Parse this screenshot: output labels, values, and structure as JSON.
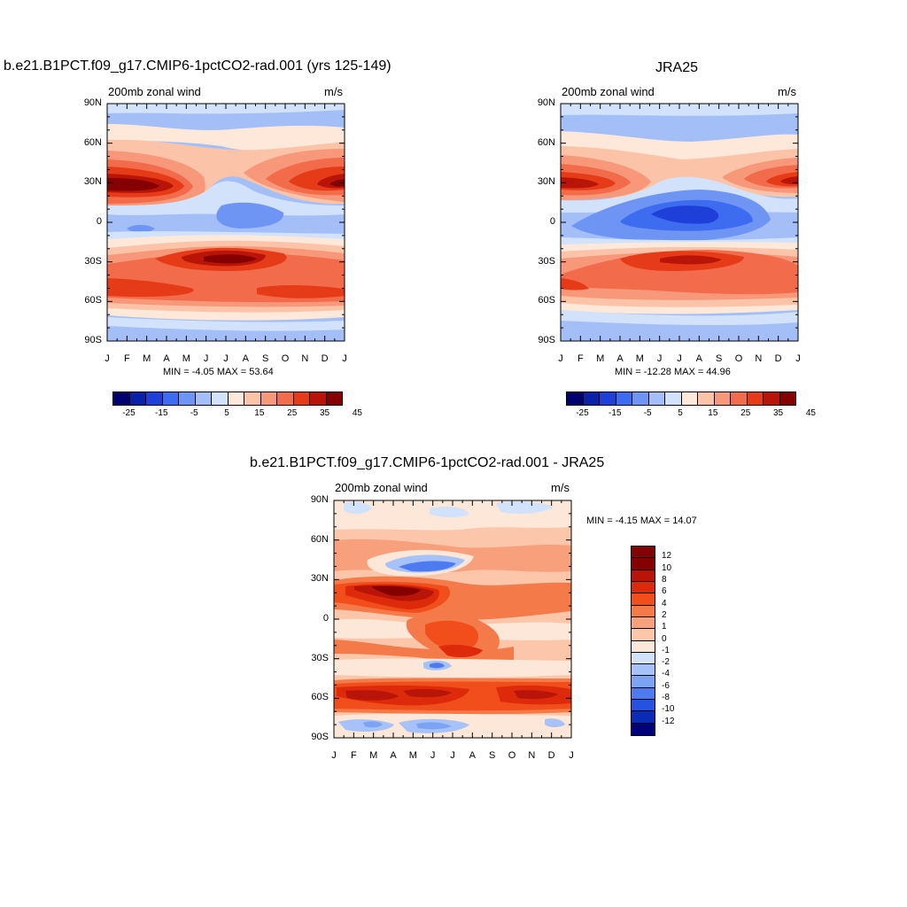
{
  "colors": {
    "levels_main": [
      "#00006e",
      "#0a22a8",
      "#1f40d8",
      "#3d6cf0",
      "#6e95f4",
      "#a4bff7",
      "#d2e2fb",
      "#fde8da",
      "#fbc4a8",
      "#f8987a",
      "#f26b4a",
      "#e53b18",
      "#b81407",
      "#850000"
    ],
    "levels_diff": [
      "#850000",
      "#b81407",
      "#dc2a0a",
      "#f24e1c",
      "#f47a4a",
      "#f8a07c",
      "#fbc6aa",
      "#fde7d8",
      "#d2e2fb",
      "#a7c2f8",
      "#7da3f4",
      "#4d7af0",
      "#2552e0",
      "#0a2ab8",
      "#00007a"
    ]
  },
  "panel1": {
    "title": "b.e21.B1PCT.f09_g17.CMIP6-1pctCO2-rad.001 (yrs 125-149)",
    "left_label": "200mb zonal wind",
    "right_label": "m/s",
    "stats": "MIN =  -4.05 MAX =  53.64",
    "colorbar_labels": [
      "-25",
      "-15",
      "-5",
      "5",
      "15",
      "25",
      "35",
      "45"
    ]
  },
  "panel2": {
    "title": "JRA25",
    "left_label": "200mb zonal wind",
    "right_label": "m/s",
    "stats": "MIN = -12.28 MAX =  44.96",
    "colorbar_labels": [
      "-25",
      "-15",
      "-5",
      "5",
      "15",
      "25",
      "35",
      "45"
    ]
  },
  "panel3": {
    "title": "b.e21.B1PCT.f09_g17.CMIP6-1pctCO2-rad.001 - JRA25",
    "left_label": "200mb zonal wind",
    "right_label": "m/s",
    "stats": "MIN =  -4.15 MAX =  14.07",
    "colorbar_labels": [
      "12",
      "10",
      "8",
      "6",
      "4",
      "2",
      "1",
      "0",
      "-1",
      "-2",
      "-4",
      "-6",
      "-8",
      "-10",
      "-12"
    ]
  },
  "chart_data": [
    {
      "type": "heatmap",
      "title": "b.e21.B1PCT.f09_g17.CMIP6-1pctCO2-rad.001 (yrs 125-149)",
      "xlabel": "",
      "ylabel": "",
      "x": [
        "J",
        "F",
        "M",
        "A",
        "M",
        "J",
        "J",
        "A",
        "S",
        "O",
        "N",
        "D",
        "J"
      ],
      "y": [
        "90N",
        "60N",
        "30N",
        "0",
        "30S",
        "60S",
        "90S"
      ],
      "ylim": [
        -90,
        90
      ],
      "units": "m/s",
      "min": -4.05,
      "max": 53.64,
      "features": [
        {
          "name": "NH subtropical jet, Jan",
          "lat": 28,
          "month": 0.5,
          "value": 50
        },
        {
          "name": "NH subtropical jet, Dec",
          "lat": 28,
          "month": 11.5,
          "value": 45
        },
        {
          "name": "SH jet core, Jul",
          "lat": -27,
          "month": 6.5,
          "value": 50
        },
        {
          "name": "SH midlatitude band",
          "lat": -52,
          "month": 6,
          "value": 35
        },
        {
          "name": "Tropical easterlies, Jul",
          "lat": 8,
          "month": 6.5,
          "value": -5
        }
      ]
    },
    {
      "type": "heatmap",
      "title": "JRA25",
      "xlabel": "",
      "ylabel": "",
      "x": [
        "J",
        "F",
        "M",
        "A",
        "M",
        "J",
        "J",
        "A",
        "S",
        "O",
        "N",
        "D",
        "J"
      ],
      "y": [
        "90N",
        "60N",
        "30N",
        "0",
        "30S",
        "60S",
        "90S"
      ],
      "ylim": [
        -90,
        90
      ],
      "units": "m/s",
      "min": -12.28,
      "max": 44.96,
      "features": [
        {
          "name": "NH subtropical jet, Jan",
          "lat": 28,
          "month": 0.5,
          "value": 40
        },
        {
          "name": "NH subtropical jet, Dec",
          "lat": 30,
          "month": 11.5,
          "value": 40
        },
        {
          "name": "SH jet core, Jul",
          "lat": -28,
          "month": 7,
          "value": 40
        },
        {
          "name": "SH midlatitude band",
          "lat": -45,
          "month": 6,
          "value": 30
        },
        {
          "name": "Tropical easterlies, Jul",
          "lat": 5,
          "month": 7,
          "value": -12
        }
      ]
    },
    {
      "type": "heatmap",
      "title": "b.e21.B1PCT.f09_g17.CMIP6-1pctCO2-rad.001 - JRA25",
      "xlabel": "",
      "ylabel": "",
      "x": [
        "J",
        "F",
        "M",
        "A",
        "M",
        "J",
        "J",
        "A",
        "S",
        "O",
        "N",
        "D",
        "J"
      ],
      "y": [
        "90N",
        "60N",
        "30N",
        "0",
        "30S",
        "60S",
        "90S"
      ],
      "ylim": [
        -90,
        90
      ],
      "units": "m/s",
      "min": -4.15,
      "max": 14.07,
      "features": [
        {
          "name": "NH subtropical max, Apr-May",
          "lat": 25,
          "month": 4,
          "value": 12
        },
        {
          "name": "SH 55S band max",
          "lat": -55,
          "month": 4,
          "value": 10
        },
        {
          "name": "Negative pocket 40N, May",
          "lat": 40,
          "month": 4.5,
          "value": -4
        },
        {
          "name": "Negative pocket 80S, May",
          "lat": -82,
          "month": 4,
          "value": -3
        }
      ]
    }
  ]
}
